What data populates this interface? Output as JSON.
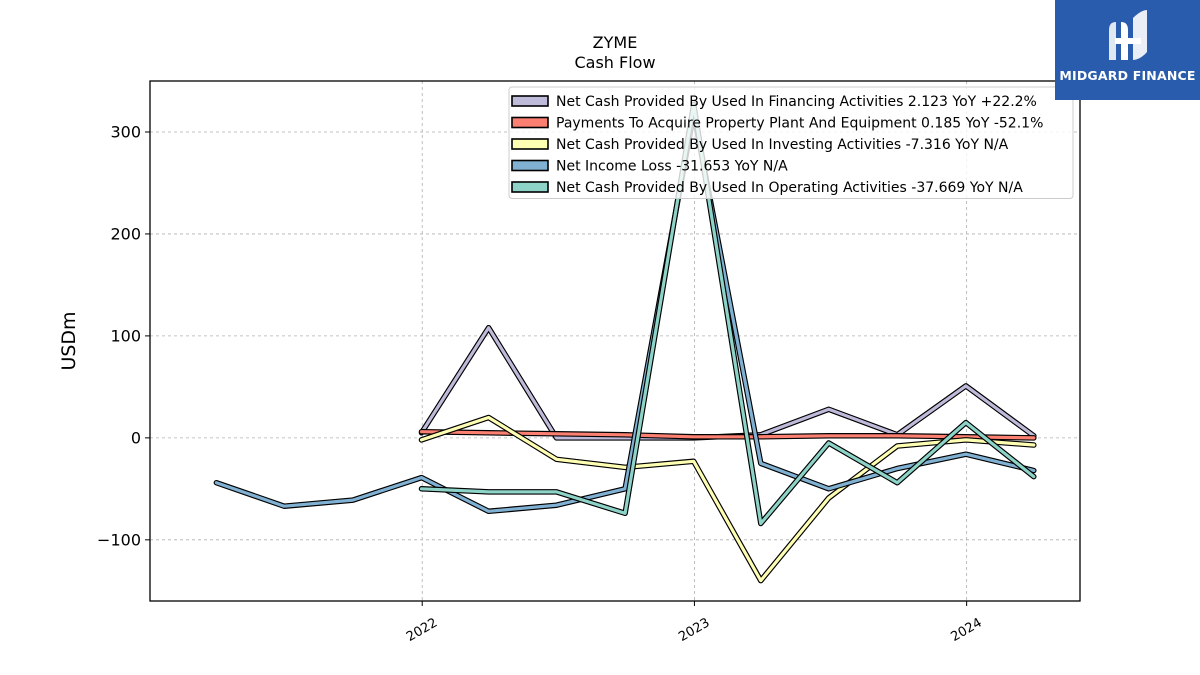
{
  "brand": {
    "name": "MIDGARD FINANCE",
    "icon": "midgard-logo-icon"
  },
  "chart_data": {
    "type": "line",
    "title": "ZYME",
    "subtitle": "Cash Flow",
    "ylabel": "USDm",
    "xlabel": "",
    "ylim": [
      -160,
      350
    ],
    "xlim": [
      "2021-01-01",
      "2024-06-01"
    ],
    "yticks": [
      -100,
      0,
      100,
      200,
      300
    ],
    "ytick_labels": [
      "−100",
      "0",
      "100",
      "200",
      "300"
    ],
    "xticks": [
      "2022-01-01",
      "2023-01-01",
      "2024-01-01"
    ],
    "xtick_labels": [
      "2022",
      "2023",
      "2024"
    ],
    "grid": true,
    "legend_position": "top-right",
    "series": [
      {
        "name": "Net Cash Provided By Used In Financing Activities  2.123 YoY +22.2%",
        "color": "#bebada",
        "x": [
          "2021-12-31",
          "2022-03-31",
          "2022-06-30",
          "2022-09-30",
          "2022-12-31",
          "2023-03-31",
          "2023-06-30",
          "2023-09-30",
          "2023-12-31",
          "2024-03-31"
        ],
        "y": [
          5,
          108,
          0,
          0,
          0,
          3,
          28,
          3,
          51,
          2
        ]
      },
      {
        "name": "Payments To Acquire Property Plant And Equipment  0.185 YoY -52.1%",
        "color": "#fb8072",
        "x": [
          "2021-12-31",
          "2022-03-31",
          "2022-06-30",
          "2022-09-30",
          "2022-12-31",
          "2023-03-31",
          "2023-06-30",
          "2023-09-30",
          "2023-12-31",
          "2024-03-31"
        ],
        "y": [
          6,
          5,
          4,
          3,
          1,
          1,
          2,
          2,
          1,
          0
        ]
      },
      {
        "name": "Net Cash Provided By Used In Investing Activities  -7.316 YoY N/A",
        "color": "#ffffb3",
        "x": [
          "2021-12-31",
          "2022-03-31",
          "2022-06-30",
          "2022-09-30",
          "2022-12-31",
          "2023-03-31",
          "2023-06-30",
          "2023-09-30",
          "2023-12-31",
          "2024-03-31"
        ],
        "y": [
          -2,
          20,
          -21,
          -29,
          -23,
          -140,
          -59,
          -8,
          -2,
          -7
        ]
      },
      {
        "name": "Net Income Loss -31.653 YoY N/A",
        "color": "#80b1d3",
        "x": [
          "2021-03-31",
          "2021-06-30",
          "2021-09-30",
          "2021-12-31",
          "2022-03-31",
          "2022-06-30",
          "2022-09-30",
          "2022-12-31",
          "2023-03-31",
          "2023-06-30",
          "2023-09-30",
          "2023-12-31",
          "2024-03-31"
        ],
        "y": [
          -44,
          -67,
          -61,
          -39,
          -72,
          -66,
          -50,
          318,
          -25,
          -50,
          -30,
          -16,
          -32
        ]
      },
      {
        "name": "Net Cash Provided By Used In Operating Activities  -37.669 YoY N/A",
        "color": "#8dd3c7",
        "x": [
          "2021-12-31",
          "2022-03-31",
          "2022-06-30",
          "2022-09-30",
          "2022-12-31",
          "2023-03-31",
          "2023-06-30",
          "2023-09-30",
          "2023-12-31",
          "2024-03-31"
        ],
        "y": [
          -50,
          -53,
          -53,
          -74,
          327,
          -84,
          -5,
          -44,
          15,
          -38
        ]
      }
    ]
  }
}
